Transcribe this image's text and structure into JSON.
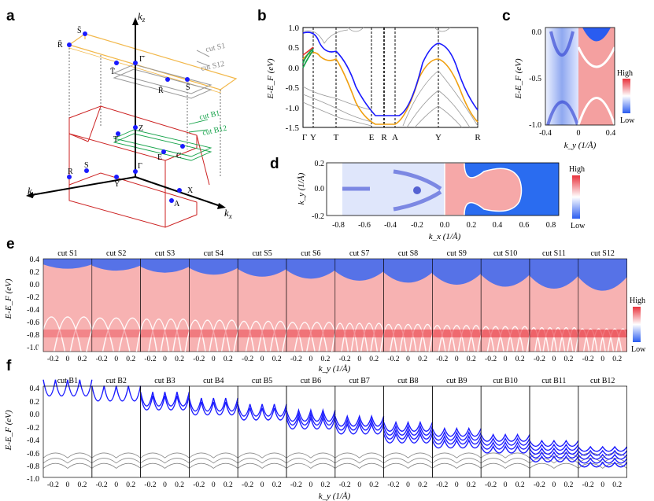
{
  "panel_letters": {
    "a": "a",
    "b": "b",
    "c": "c",
    "d": "d",
    "e": "e",
    "f": "f"
  },
  "colors": {
    "blue": "#1a1aff",
    "orange": "#f0a010",
    "green": "#16a34a",
    "red_box": "#cc2222",
    "yellow_box": "#f2b84b",
    "gray": "#888888",
    "heat_red": "#e8323c",
    "heat_blue": "#2a5cf0"
  },
  "panel_a": {
    "axis_kz": "k",
    "axis_kz_sub": "z",
    "axis_kx": "k",
    "axis_kx_sub": "x",
    "axis_ky": "k",
    "axis_ky_sub": "y",
    "points": {
      "Rbar": "R̄",
      "Sbar_top": "S̄",
      "Gammabar": "Γ̄",
      "Tbar": "T̄",
      "Rbar2": "R̄",
      "Sbar2": "S̄",
      "Z": "Z",
      "T": "T",
      "E": "E",
      "C": "C",
      "R": "R",
      "S": "S",
      "Gamma": "Γ",
      "Y": "Y",
      "X": "X",
      "A": "A"
    },
    "cut_S1": "cut S1",
    "cut_S12": "cut S12",
    "cut_B1": "cut B1",
    "cut_B12": "cut B12"
  },
  "panel_b": {
    "ylabel": "E-E_F (eV)",
    "yticks": [
      "1.0",
      "0.5",
      "0.0",
      "-0.5",
      "-1.0",
      "-1.5"
    ],
    "xticks": [
      "Γ",
      "Y",
      "T",
      "E",
      "R",
      "A",
      "Y",
      "R"
    ]
  },
  "panel_c": {
    "ylabel": "E-E_F (eV)",
    "yticks": [
      "0.0",
      "-0.5",
      "-1.0"
    ],
    "xticks": [
      "-0.4",
      "0",
      "0.4"
    ],
    "xlabel": "k_y (1/Å)",
    "cbar_high": "High",
    "cbar_low": "Low"
  },
  "panel_d": {
    "ylabel": "k_y (1/Å)",
    "yticks": [
      "0.2",
      "0.0",
      "-0.2"
    ],
    "xticks": [
      "-0.8",
      "-0.6",
      "-0.4",
      "-0.2",
      "0.0",
      "0.2",
      "0.4",
      "0.6",
      "0.8"
    ],
    "xlabel": "k_x (1/Å)",
    "cbar_high": "High",
    "cbar_low": "Low"
  },
  "panel_e": {
    "cuts": [
      "cut S1",
      "cut S2",
      "cut S3",
      "cut S4",
      "cut S5",
      "cut S6",
      "cut S7",
      "cut S8",
      "cut S9",
      "cut S10",
      "cut S11",
      "cut S12"
    ],
    "ylabel": "E-E_F (eV)",
    "yticks": [
      "0.4",
      "0.2",
      "0.0",
      "-0.2",
      "-0.4",
      "-0.6",
      "-0.8",
      "-1.0"
    ],
    "xticks": [
      "-0.2",
      "0",
      "0.2"
    ],
    "xlabel": "k_y (1/Å)",
    "cbar_high": "High",
    "cbar_low": "Low"
  },
  "panel_f": {
    "cuts": [
      "cut B1",
      "cut B2",
      "cut B3",
      "cut B4",
      "cut B5",
      "cut B6",
      "cut B7",
      "cut B8",
      "cut B9",
      "cut B10",
      "cut B11",
      "cut B12"
    ],
    "ylabel": "E-E_F (eV)",
    "yticks": [
      "0.4",
      "0.2",
      "0.0",
      "-0.2",
      "-0.4",
      "-0.6",
      "-0.8",
      "-1.0"
    ],
    "xticks": [
      "-0.2",
      "0",
      "0.2"
    ],
    "xlabel": "k_y (1/Å)"
  }
}
